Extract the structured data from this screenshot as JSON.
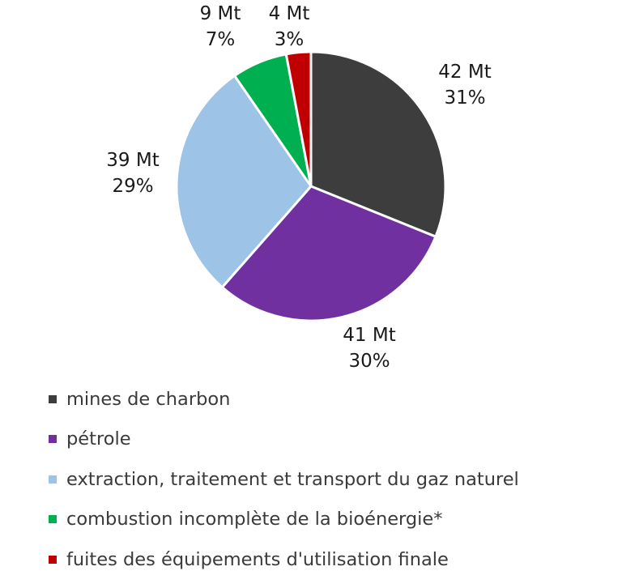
{
  "chart_data": {
    "type": "pie",
    "slices": [
      {
        "name": "mines de charbon",
        "value_label": "42 Mt",
        "percent_label": "31%",
        "value": 42,
        "color": "#3d3d3d"
      },
      {
        "name": "pétrole",
        "value_label": "41 Mt",
        "percent_label": "30%",
        "value": 41,
        "color": "#7030a0"
      },
      {
        "name": "extraction,  traitement et transport du gaz naturel",
        "value_label": "39 Mt",
        "percent_label": "29%",
        "value": 39,
        "color": "#9dc3e6"
      },
      {
        "name": "combustion incomplète de la bioénergie*",
        "value_label": "9 Mt",
        "percent_label": "7%",
        "value": 9,
        "color": "#00b050"
      },
      {
        "name": "fuites des équipements d'utilisation finale",
        "value_label": "4 Mt",
        "percent_label": "3%",
        "value": 4,
        "color": "#c00000"
      }
    ],
    "start_angle": "12 o'clock",
    "direction": "clockwise",
    "legend_position": "bottom-left"
  }
}
